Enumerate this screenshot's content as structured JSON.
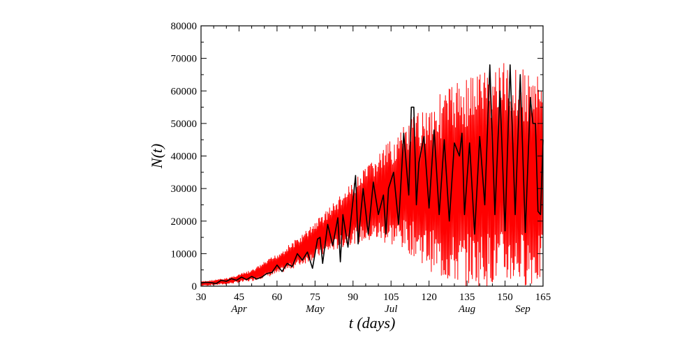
{
  "chart_data": {
    "type": "line",
    "xlabel": "t (days)",
    "ylabel": "N(t)",
    "xlim": [
      30,
      165
    ],
    "ylim": [
      0,
      80000
    ],
    "xticks": [
      30,
      45,
      60,
      75,
      90,
      105,
      120,
      135,
      150,
      165
    ],
    "yticks": [
      0,
      10000,
      20000,
      30000,
      40000,
      50000,
      60000,
      70000,
      80000
    ],
    "month_labels": [
      {
        "text": "Apr",
        "x": 45
      },
      {
        "text": "May",
        "x": 75
      },
      {
        "text": "Jul",
        "x": 105
      },
      {
        "text": "Aug",
        "x": 135
      },
      {
        "text": "Sep",
        "x": 157
      }
    ],
    "grid": false,
    "legend": "none",
    "series": [
      {
        "color": "#ff0000",
        "style": "oscillating band",
        "envelope_x": [
          30,
          40,
          50,
          60,
          70,
          80,
          90,
          100,
          110,
          115,
          120,
          125,
          130,
          140,
          145,
          150,
          155,
          160,
          165
        ],
        "upper": [
          1500,
          2500,
          5000,
          10000,
          16000,
          24000,
          32000,
          41000,
          49000,
          53000,
          57000,
          60000,
          63000,
          67000,
          68500,
          69000,
          68000,
          66000,
          64000
        ],
        "lower": [
          0,
          500,
          1500,
          3500,
          6500,
          10000,
          13000,
          13500,
          11000,
          8500,
          5000,
          1500,
          0,
          0,
          0,
          0,
          0,
          0,
          0
        ]
      },
      {
        "color": "#000000",
        "style": "daily data",
        "x": [
          30,
          32,
          34,
          36,
          38,
          40,
          42,
          44,
          46,
          48,
          50,
          52,
          54,
          56,
          58,
          60,
          62,
          64,
          66,
          68,
          70,
          72,
          74,
          76,
          77,
          78,
          80,
          82,
          84,
          85,
          86,
          88,
          90,
          91,
          92,
          93,
          94,
          96,
          98,
          100,
          102,
          103,
          104,
          106,
          108,
          110,
          112,
          113,
          114,
          115,
          116,
          118,
          120,
          122,
          124,
          126,
          128,
          130,
          132,
          133,
          134,
          136,
          138,
          140,
          142,
          144,
          146,
          148,
          150,
          152,
          154,
          156,
          158,
          160,
          161,
          162,
          163,
          164,
          165
        ],
        "y": [
          1000,
          1200,
          1100,
          800,
          1800,
          1500,
          2300,
          1800,
          2800,
          2000,
          3000,
          2200,
          2800,
          3900,
          4200,
          6500,
          4500,
          7000,
          6000,
          10000,
          8000,
          10500,
          5500,
          14500,
          15000,
          7000,
          19000,
          12500,
          21000,
          7500,
          22000,
          12000,
          26500,
          34000,
          13000,
          22000,
          30000,
          16000,
          32000,
          22000,
          28000,
          16000,
          30000,
          35000,
          19000,
          47000,
          28000,
          55000,
          55000,
          25000,
          38000,
          46000,
          24000,
          48000,
          22000,
          45000,
          20000,
          44000,
          40000,
          47000,
          22000,
          44000,
          16000,
          46000,
          25000,
          68000,
          22000,
          60000,
          17000,
          68000,
          22000,
          65000,
          16500,
          58000,
          50000,
          50000,
          23000,
          22000,
          45000
        ]
      }
    ]
  }
}
